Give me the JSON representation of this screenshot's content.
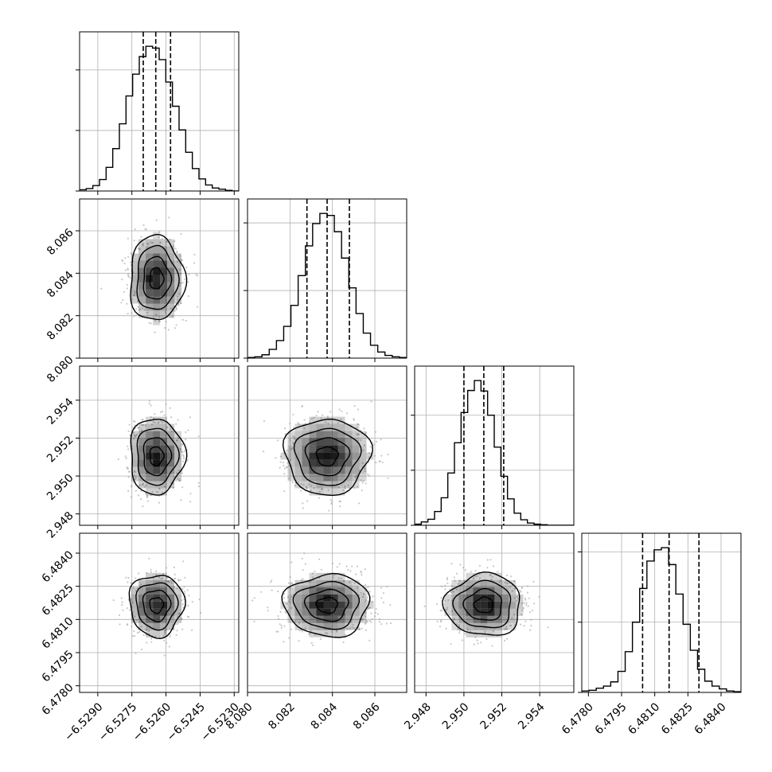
{
  "chart_data": {
    "type": "corner",
    "title": "",
    "grid": true,
    "n_params": 4,
    "params": [
      {
        "range": [
          -6.5298,
          -6.5228
        ],
        "ticks": [
          -6.529,
          -6.5275,
          -6.526,
          -6.5245,
          -6.523
        ],
        "tick_labels": [
          "−6.5290",
          "−6.5275",
          "−6.5260",
          "−6.5245",
          "−6.5230"
        ],
        "mean": -6.52642,
        "sigma": 0.0006,
        "quantiles": [
          -6.527,
          -6.52645,
          -6.5258
        ]
      },
      {
        "range": [
          8.08,
          8.0875
        ],
        "ticks": [
          8.08,
          8.082,
          8.084,
          8.086
        ],
        "tick_labels": [
          "8.080",
          "8.082",
          "8.084",
          "8.086"
        ],
        "mean": 8.08375,
        "sigma": 0.001,
        "quantiles": [
          8.0828,
          8.08375,
          8.0848
        ]
      },
      {
        "range": [
          2.9474,
          2.9558
        ],
        "ticks": [
          2.948,
          2.95,
          2.952,
          2.954
        ],
        "tick_labels": [
          "2.948",
          "2.950",
          "2.952",
          "2.954"
        ],
        "mean": 2.95105,
        "sigma": 0.001,
        "quantiles": [
          2.95,
          2.95105,
          2.9521
        ]
      },
      {
        "range": [
          6.4777,
          6.4849
        ],
        "ticks": [
          6.478,
          6.4795,
          6.481,
          6.4825,
          6.484
        ],
        "tick_labels": [
          "6.4780",
          "6.4795",
          "6.4810",
          "6.4825",
          "6.4840"
        ],
        "mean": 6.48165,
        "sigma": 0.0007,
        "quantiles": [
          6.48045,
          6.48165,
          6.483
        ]
      }
    ],
    "histograms": [
      {
        "bins": [
          -6.5298,
          -6.5228
        ],
        "counts": [
          2,
          4,
          9,
          19,
          39,
          70,
          111,
          157,
          193,
          222,
          239,
          236,
          217,
          180,
          140,
          101,
          64,
          37,
          20,
          10,
          5,
          3,
          1,
          0
        ]
      },
      {
        "bins": [
          8.08,
          8.0875
        ],
        "counts": [
          1,
          2,
          5,
          13,
          26,
          47,
          78,
          122,
          166,
          199,
          214,
          211,
          187,
          148,
          104,
          66,
          37,
          19,
          9,
          4,
          2,
          1
        ]
      },
      {
        "bins": [
          2.9474,
          2.9558
        ],
        "counts": [
          2,
          6,
          11,
          25,
          50,
          95,
          150,
          205,
          245,
          263,
          244,
          200,
          142,
          89,
          48,
          22,
          10,
          4,
          2,
          1,
          0,
          0,
          0,
          0
        ]
      },
      {
        "bins": [
          6.4777,
          6.4849
        ],
        "counts": [
          2,
          3,
          6,
          9,
          15,
          30,
          58,
          100,
          148,
          187,
          203,
          206,
          182,
          140,
          97,
          60,
          33,
          16,
          9,
          5,
          2,
          1
        ]
      }
    ],
    "hist_y_ticks": [
      [
        0,
        100,
        200,
        300
      ],
      [
        0,
        100,
        200,
        300
      ],
      [
        0,
        100,
        200,
        300,
        400
      ],
      [
        0,
        100,
        200,
        300
      ]
    ],
    "colors": {
      "hist_line": "#000000",
      "contour": "#000000",
      "density": "#000000",
      "points": "#9a9a9a",
      "grid": "#b0b0b0"
    }
  }
}
